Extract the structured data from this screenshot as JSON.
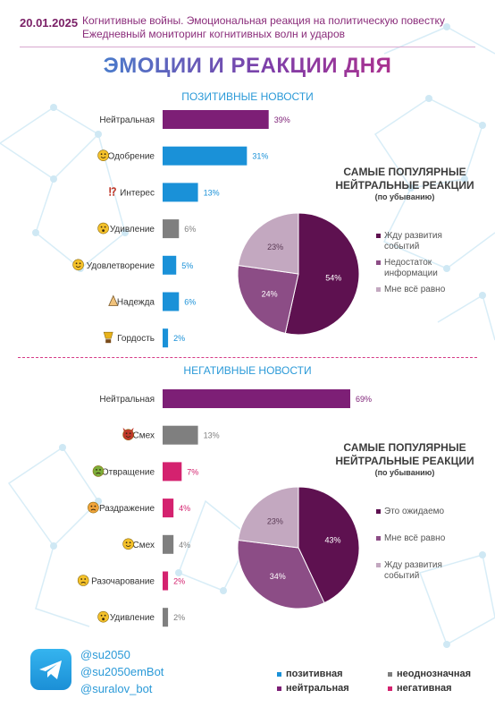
{
  "header": {
    "date": "20.01.2025",
    "line1": "Когнитивные войны. Эмоциональная реакция на политическую повестку",
    "line2": "Ежедневный мониторинг когнитивных волн и ударов"
  },
  "title": "ЭМОЦИИ И РЕАКЦИИ ДНЯ",
  "colors": {
    "positive": "#1a91d8",
    "ambiguous": "#7f7f7f",
    "neutral": "#7d1f76",
    "negative": "#d4226f",
    "pie1": "#5e1150",
    "pie2": "#8c4d86",
    "pie3": "#c3a8c0"
  },
  "chart_data": [
    {
      "type": "bar",
      "title": "ПОЗИТИВНЫЕ НОВОСТИ",
      "categories": [
        {
          "label": "Нейтральная",
          "value": 39,
          "value_label": "39%",
          "kind": "neutral",
          "icon": ""
        },
        {
          "label": "Одобрение",
          "value": 31,
          "value_label": "31%",
          "kind": "positive",
          "icon": "smiling-face-hearts-icon"
        },
        {
          "label": "Интерес",
          "value": 13,
          "value_label": "13%",
          "kind": "positive",
          "icon": "exclamation-question-icon"
        },
        {
          "label": "Удивление",
          "value": 6,
          "value_label": "6%",
          "kind": "ambiguous",
          "icon": "surprised-face-icon"
        },
        {
          "label": "Удовлетворение",
          "value": 5,
          "value_label": "5%",
          "kind": "positive",
          "icon": "satisfied-face-icon"
        },
        {
          "label": "Надежда",
          "value": 6,
          "value_label": "6%",
          "kind": "positive",
          "icon": "praying-hands-icon"
        },
        {
          "label": "Гордость",
          "value": 2,
          "value_label": "2%",
          "kind": "positive",
          "icon": "trophy-icon"
        }
      ]
    },
    {
      "type": "pie",
      "title": "САМЫЕ ПОПУЛЯРНЫЕ НЕЙТРАЛЬНЫЕ РЕАКЦИИ",
      "subtitle": "(по убыванию)",
      "slices": [
        {
          "label": "Жду развития событий",
          "value": 54,
          "value_label": "54%"
        },
        {
          "label": "Недостаток информации",
          "value": 24,
          "value_label": "24%"
        },
        {
          "label": "Мне всё равно",
          "value": 23,
          "value_label": "23%"
        }
      ]
    },
    {
      "type": "bar",
      "title": "НЕГАТИВНЫЕ НОВОСТИ",
      "categories": [
        {
          "label": "Нейтральная",
          "value": 69,
          "value_label": "69%",
          "kind": "neutral",
          "icon": ""
        },
        {
          "label": "Смех",
          "value": 13,
          "value_label": "13%",
          "kind": "ambiguous",
          "icon": "devil-face-icon"
        },
        {
          "label": "Отвращение",
          "value": 7,
          "value_label": "7%",
          "kind": "negative",
          "icon": "nauseated-face-icon"
        },
        {
          "label": "Раздражение",
          "value": 4,
          "value_label": "4%",
          "kind": "negative",
          "icon": "annoyed-face-icon"
        },
        {
          "label": "Смех",
          "value": 4,
          "value_label": "4%",
          "kind": "ambiguous",
          "icon": "laughing-face-icon"
        },
        {
          "label": "Разочарование",
          "value": 2,
          "value_label": "2%",
          "kind": "negative",
          "icon": "disappointed-face-icon"
        },
        {
          "label": "Удивление",
          "value": 2,
          "value_label": "2%",
          "kind": "ambiguous",
          "icon": "astonished-face-icon"
        }
      ]
    },
    {
      "type": "pie",
      "title": "САМЫЕ ПОПУЛЯРНЫЕ НЕЙТРАЛЬНЫЕ РЕАКЦИИ",
      "subtitle": "(по убыванию)",
      "slices": [
        {
          "label": "Это ожидаемо",
          "value": 43,
          "value_label": "43%"
        },
        {
          "label": "Мне всё равно",
          "value": 34,
          "value_label": "34%"
        },
        {
          "label": "Жду развития событий",
          "value": 23,
          "value_label": "23%"
        }
      ]
    }
  ],
  "footer": {
    "social": [
      "@su2050",
      "@su2050emBot",
      "@suralov_bot"
    ],
    "legend": {
      "positive": "позитивная",
      "ambiguous": "неоднозначная",
      "neutral": "нейтральная",
      "negative": "негативная"
    }
  }
}
